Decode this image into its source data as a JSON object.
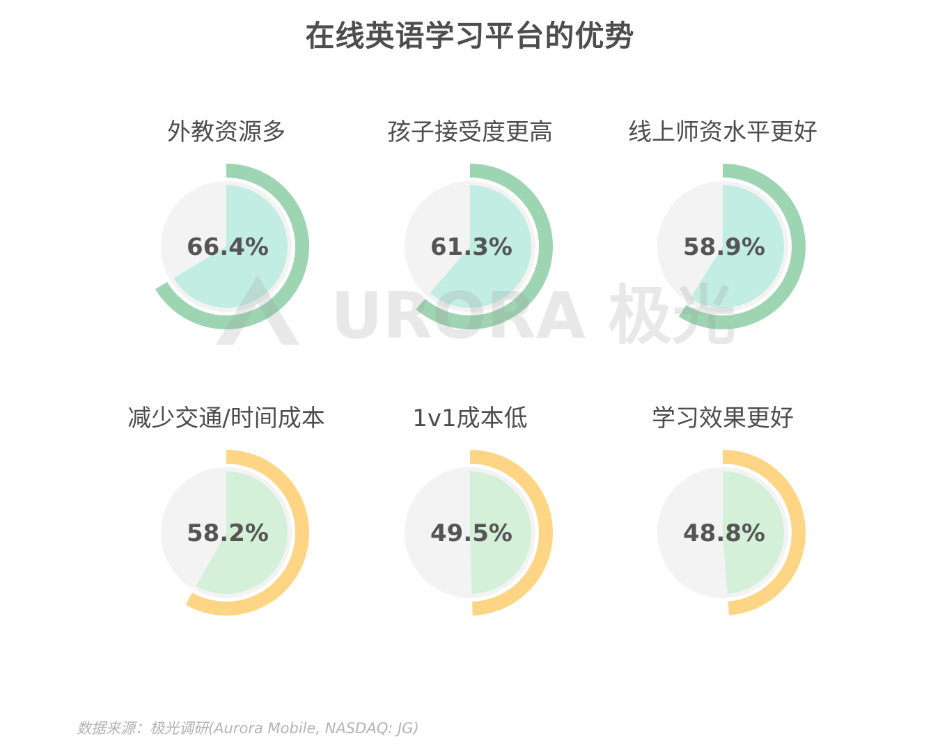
{
  "title": "在线英语学习平台的优势",
  "source": "数据来源：极光调研(Aurora Mobile, NASDAQ: JG)",
  "watermark": "URORA 极光",
  "colors": {
    "background_circle": "#f3f3f3",
    "green_ring": "#9dd5b2",
    "green_fill": "#c2ede2",
    "orange_ring": "#fdd585",
    "orange_fill": "#d4f0d9",
    "label_text": "#4d4d4d",
    "value_text": "#555555"
  },
  "chart_data": {
    "type": "pie",
    "unit": "%",
    "items": [
      {
        "label": "外教资源多",
        "value": 66.4,
        "display": "66.4%",
        "group": "green"
      },
      {
        "label": "孩子接受度更高",
        "value": 61.3,
        "display": "61.3%",
        "group": "green"
      },
      {
        "label": "线上师资水平更好",
        "value": 58.9,
        "display": "58.9%",
        "group": "green"
      },
      {
        "label": "减少交通/时间成本",
        "value": 58.2,
        "display": "58.2%",
        "group": "orange"
      },
      {
        "label": "1v1成本低",
        "value": 49.5,
        "display": "49.5%",
        "group": "orange"
      },
      {
        "label": "学习效果更好",
        "value": 48.8,
        "display": "48.8%",
        "group": "orange"
      }
    ]
  }
}
